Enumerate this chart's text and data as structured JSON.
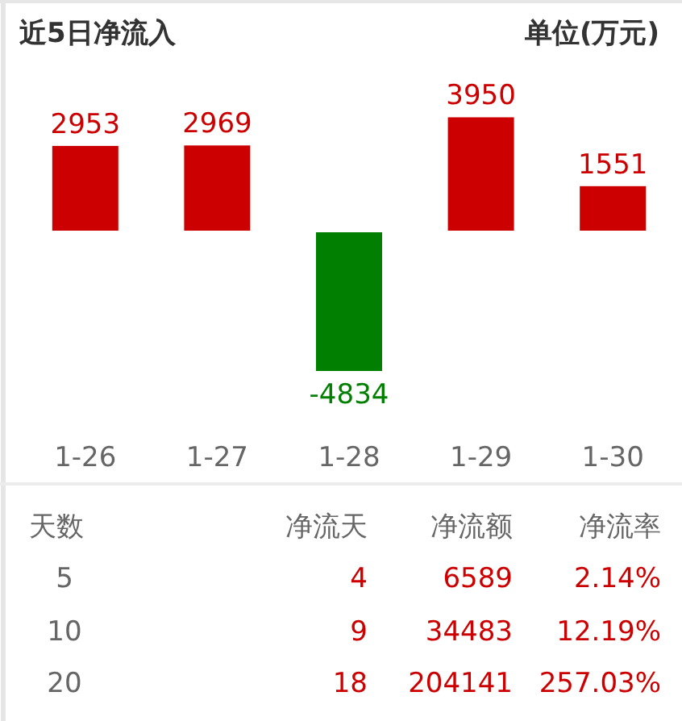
{
  "chart_data": [
    {
      "type": "bar",
      "title": "近5日净流入",
      "annotations": [
        "单位(万元)"
      ],
      "categories": [
        "1-26",
        "1-27",
        "1-28",
        "1-29",
        "1-30"
      ],
      "values": [
        2953,
        2969,
        -4834,
        3950,
        1551
      ],
      "colors": [
        "#cc0000",
        "#cc0000",
        "#007f00",
        "#cc0000",
        "#cc0000"
      ],
      "data_labels": true
    },
    {
      "type": "other",
      "annotations": [
        "天数",
        "净流天",
        "净流额",
        "净流率",
        "5",
        "4",
        "6589",
        "2.14%",
        "10",
        "9",
        "34483",
        "12.19%",
        "20",
        "18",
        "204141",
        "257.03%"
      ]
    }
  ]
}
